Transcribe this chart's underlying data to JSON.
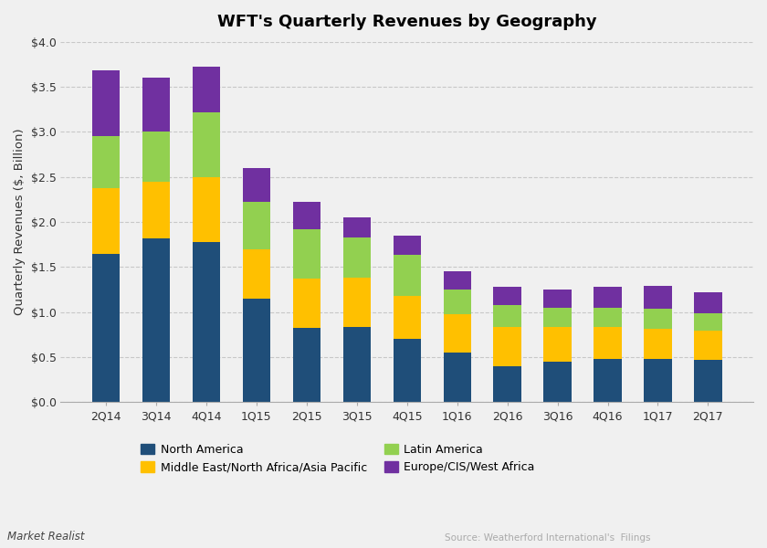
{
  "title": "WFT's Quarterly Revenues by Geography",
  "ylabel": "Quarterly Revenues ($, Billion)",
  "categories": [
    "2Q14",
    "3Q14",
    "4Q14",
    "1Q15",
    "2Q15",
    "3Q15",
    "4Q15",
    "1Q16",
    "2Q16",
    "3Q16",
    "4Q16",
    "1Q17",
    "2Q17"
  ],
  "series": [
    {
      "name": "North America",
      "color": "#1f4e79",
      "values": [
        1.65,
        1.82,
        1.78,
        1.15,
        0.82,
        0.83,
        0.7,
        0.55,
        0.4,
        0.45,
        0.48,
        0.48,
        0.47
      ]
    },
    {
      "name": "Middle East/North Africa/Asia Pacific",
      "color": "#ffc000",
      "values": [
        0.72,
        0.63,
        0.72,
        0.55,
        0.55,
        0.55,
        0.48,
        0.43,
        0.43,
        0.38,
        0.35,
        0.33,
        0.32
      ]
    },
    {
      "name": "Latin America",
      "color": "#92d050",
      "values": [
        0.58,
        0.55,
        0.72,
        0.52,
        0.55,
        0.45,
        0.45,
        0.27,
        0.25,
        0.22,
        0.22,
        0.23,
        0.2
      ]
    },
    {
      "name": "Europe/CIS/West Africa",
      "color": "#7030a0",
      "values": [
        0.73,
        0.6,
        0.5,
        0.38,
        0.3,
        0.22,
        0.22,
        0.2,
        0.2,
        0.2,
        0.23,
        0.25,
        0.23
      ]
    }
  ],
  "ylim": [
    0,
    4.0
  ],
  "yticks": [
    0.0,
    0.5,
    1.0,
    1.5,
    2.0,
    2.5,
    3.0,
    3.5,
    4.0
  ],
  "background_color": "#f0f0f0",
  "plot_bg_color": "#f0f0f0",
  "grid_color": "#c8c8c8",
  "title_fontsize": 13,
  "axis_label_fontsize": 9.5,
  "tick_fontsize": 9,
  "legend_fontsize": 9,
  "bar_width": 0.55,
  "watermark_left": "Market Realist",
  "watermark_right": "Source: Weatherford International's  Filings",
  "legend_order": [
    0,
    1,
    2,
    3
  ]
}
